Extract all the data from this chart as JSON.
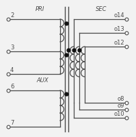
{
  "bg_color": "#f2f2f2",
  "line_color": "#4a4a4a",
  "dot_color": "#111111",
  "text_color": "#4a4a4a",
  "pri_label": "PRI",
  "sec_label": "SEC",
  "aux_label": "AUX"
}
